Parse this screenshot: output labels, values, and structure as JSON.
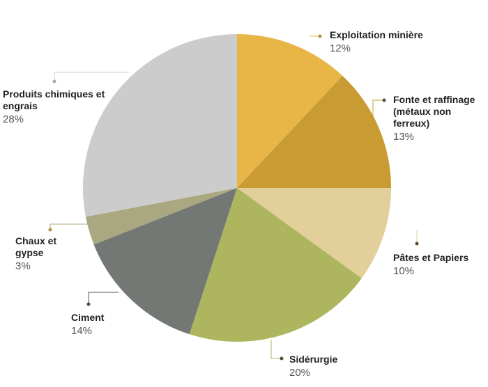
{
  "chart_data": {
    "type": "pie",
    "categories": [
      "Exploitation minière",
      "Fonte et raffinage (métaux non ferreux)",
      "Pâtes et Papiers",
      "Sidérurgie",
      "Ciment",
      "Chaux et gypse",
      "Produits chimiques et engrais"
    ],
    "values": [
      12,
      13,
      10,
      20,
      14,
      3,
      28
    ],
    "value_labels": [
      "12%",
      "13%",
      "10%",
      "20%",
      "14%",
      "3%",
      "28%"
    ],
    "colors": [
      "#e8b547",
      "#c99b33",
      "#e3cf9a",
      "#adb65e",
      "#737874",
      "#aaa880",
      "#cccccc"
    ]
  }
}
